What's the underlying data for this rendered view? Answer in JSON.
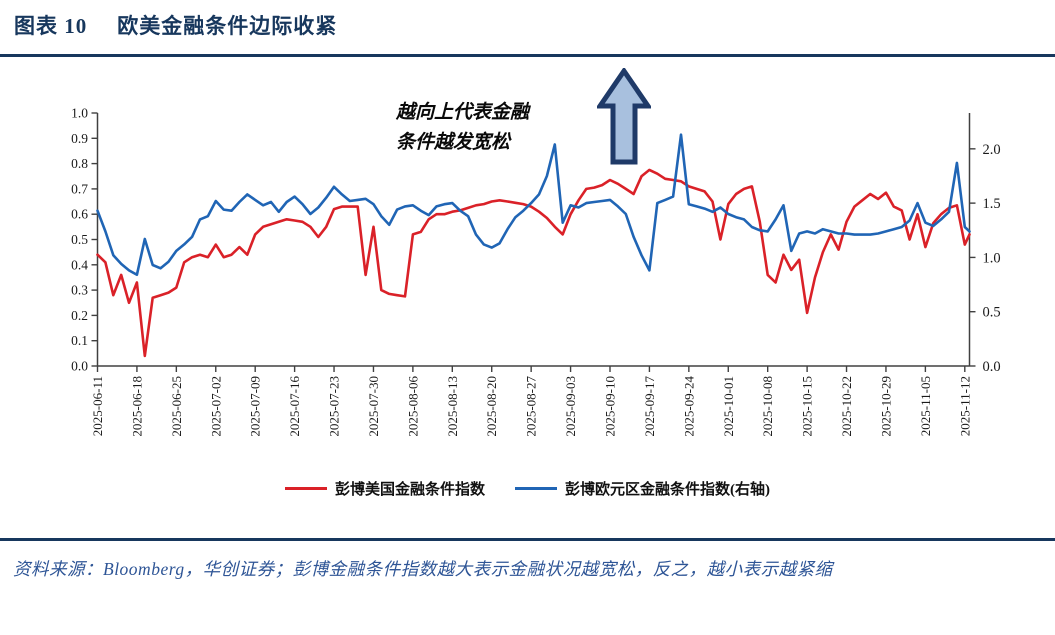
{
  "figure": {
    "label": "图表 10",
    "title": "欧美金融条件边际收紧"
  },
  "annotation": {
    "line1": "越向上代表金融",
    "line2": "条件越发宽松"
  },
  "legend": [
    {
      "label": "彭博美国金融条件指数",
      "color": "#da2128"
    },
    {
      "label": "彭博欧元区金融条件指数(右轴)",
      "color": "#2065b5"
    }
  ],
  "source_note": "资料来源：Bloomberg，华创证券；彭博金融条件指数越大表示金融状况越宽松，反之，越小表示越紧缩",
  "colors": {
    "navy": "#17375d",
    "red_series": "#da2128",
    "blue_series": "#2065b5",
    "arrow_fill": "#a8c0de",
    "arrow_stroke": "#1f3a68",
    "axis": "#404040",
    "source_text": "#2e5596"
  },
  "chart_data": {
    "type": "line",
    "title": "",
    "xlabel": "",
    "ylabel_left": "",
    "ylabel_right": "",
    "grid": false,
    "legend_position": "bottom",
    "left_axis": {
      "range": [
        0.0,
        1.0
      ],
      "ticks": [
        "1.0",
        "0.9",
        "0.8",
        "0.7",
        "0.6",
        "0.5",
        "0.4",
        "0.3",
        "0.2",
        "0.1",
        "0.0"
      ]
    },
    "right_axis": {
      "range": [
        0.0,
        2.33
      ],
      "ticks": [
        "2.0",
        "1.5",
        "1.0",
        "0.5",
        "0.0"
      ]
    },
    "x_tick_labels": [
      "2025-06-11",
      "2025-06-18",
      "2025-06-25",
      "2025-07-02",
      "2025-07-09",
      "2025-07-16",
      "2025-07-23",
      "2025-07-30",
      "2025-08-06",
      "2025-08-13",
      "2025-08-20",
      "2025-08-27",
      "2025-09-03",
      "2025-09-10",
      "2025-09-17",
      "2025-09-24",
      "2025-10-01",
      "2025-10-08",
      "2025-10-15",
      "2025-10-22",
      "2025-10-29",
      "2025-11-05",
      "2025-11-12"
    ],
    "series": [
      {
        "name": "彭博美国金融条件指数",
        "axis": "left",
        "color": "#da2128",
        "points": [
          [
            "2025-06-11",
            0.44
          ],
          [
            "2025-06-12",
            0.41
          ],
          [
            "2025-06-13",
            0.28
          ],
          [
            "2025-06-16",
            0.36
          ],
          [
            "2025-06-17",
            0.25
          ],
          [
            "2025-06-18",
            0.33
          ],
          [
            "2025-06-19",
            0.04
          ],
          [
            "2025-06-20",
            0.27
          ],
          [
            "2025-06-23",
            0.28
          ],
          [
            "2025-06-24",
            0.29
          ],
          [
            "2025-06-25",
            0.31
          ],
          [
            "2025-06-26",
            0.41
          ],
          [
            "2025-06-27",
            0.43
          ],
          [
            "2025-06-30",
            0.44
          ],
          [
            "2025-07-01",
            0.43
          ],
          [
            "2025-07-02",
            0.48
          ],
          [
            "2025-07-03",
            0.43
          ],
          [
            "2025-07-04",
            0.44
          ],
          [
            "2025-07-07",
            0.47
          ],
          [
            "2025-07-08",
            0.44
          ],
          [
            "2025-07-09",
            0.52
          ],
          [
            "2025-07-10",
            0.55
          ],
          [
            "2025-07-11",
            0.56
          ],
          [
            "2025-07-14",
            0.57
          ],
          [
            "2025-07-15",
            0.58
          ],
          [
            "2025-07-16",
            0.575
          ],
          [
            "2025-07-17",
            0.57
          ],
          [
            "2025-07-18",
            0.55
          ],
          [
            "2025-07-21",
            0.51
          ],
          [
            "2025-07-22",
            0.55
          ],
          [
            "2025-07-23",
            0.62
          ],
          [
            "2025-07-24",
            0.63
          ],
          [
            "2025-07-25",
            0.63
          ],
          [
            "2025-07-28",
            0.63
          ],
          [
            "2025-07-29",
            0.36
          ],
          [
            "2025-07-30",
            0.55
          ],
          [
            "2025-07-31",
            0.3
          ],
          [
            "2025-08-01",
            0.285
          ],
          [
            "2025-08-04",
            0.28
          ],
          [
            "2025-08-05",
            0.275
          ],
          [
            "2025-08-06",
            0.52
          ],
          [
            "2025-08-07",
            0.53
          ],
          [
            "2025-08-08",
            0.58
          ],
          [
            "2025-08-11",
            0.6
          ],
          [
            "2025-08-12",
            0.6
          ],
          [
            "2025-08-13",
            0.61
          ],
          [
            "2025-08-14",
            0.615
          ],
          [
            "2025-08-15",
            0.625
          ],
          [
            "2025-08-18",
            0.635
          ],
          [
            "2025-08-19",
            0.64
          ],
          [
            "2025-08-20",
            0.65
          ],
          [
            "2025-08-21",
            0.655
          ],
          [
            "2025-08-22",
            0.65
          ],
          [
            "2025-08-25",
            0.645
          ],
          [
            "2025-08-26",
            0.64
          ],
          [
            "2025-08-27",
            0.63
          ],
          [
            "2025-08-28",
            0.61
          ],
          [
            "2025-08-29",
            0.585
          ],
          [
            "2025-09-01",
            0.55
          ],
          [
            "2025-09-02",
            0.52
          ],
          [
            "2025-09-03",
            0.6
          ],
          [
            "2025-09-04",
            0.655
          ],
          [
            "2025-09-05",
            0.7
          ],
          [
            "2025-09-08",
            0.705
          ],
          [
            "2025-09-09",
            0.715
          ],
          [
            "2025-09-10",
            0.735
          ],
          [
            "2025-09-11",
            0.72
          ],
          [
            "2025-09-12",
            0.7
          ],
          [
            "2025-09-15",
            0.68
          ],
          [
            "2025-09-16",
            0.75
          ],
          [
            "2025-09-17",
            0.775
          ],
          [
            "2025-09-18",
            0.76
          ],
          [
            "2025-09-19",
            0.74
          ],
          [
            "2025-09-22",
            0.735
          ],
          [
            "2025-09-23",
            0.73
          ],
          [
            "2025-09-24",
            0.71
          ],
          [
            "2025-09-25",
            0.7
          ],
          [
            "2025-09-26",
            0.69
          ],
          [
            "2025-09-29",
            0.65
          ],
          [
            "2025-09-30",
            0.5
          ],
          [
            "2025-10-01",
            0.64
          ],
          [
            "2025-10-02",
            0.68
          ],
          [
            "2025-10-03",
            0.7
          ],
          [
            "2025-10-06",
            0.71
          ],
          [
            "2025-10-07",
            0.57
          ],
          [
            "2025-10-08",
            0.36
          ],
          [
            "2025-10-09",
            0.33
          ],
          [
            "2025-10-10",
            0.44
          ],
          [
            "2025-10-13",
            0.38
          ],
          [
            "2025-10-14",
            0.42
          ],
          [
            "2025-10-15",
            0.21
          ],
          [
            "2025-10-16",
            0.35
          ],
          [
            "2025-10-17",
            0.45
          ],
          [
            "2025-10-20",
            0.52
          ],
          [
            "2025-10-21",
            0.46
          ],
          [
            "2025-10-22",
            0.57
          ],
          [
            "2025-10-23",
            0.63
          ],
          [
            "2025-10-24",
            0.655
          ],
          [
            "2025-10-27",
            0.68
          ],
          [
            "2025-10-28",
            0.66
          ],
          [
            "2025-10-29",
            0.685
          ],
          [
            "2025-10-30",
            0.63
          ],
          [
            "2025-10-31",
            0.615
          ],
          [
            "2025-11-03",
            0.5
          ],
          [
            "2025-11-04",
            0.6
          ],
          [
            "2025-11-05",
            0.47
          ],
          [
            "2025-11-06",
            0.565
          ],
          [
            "2025-11-07",
            0.6
          ],
          [
            "2025-11-10",
            0.625
          ],
          [
            "2025-11-11",
            0.635
          ],
          [
            "2025-11-12",
            0.48
          ],
          [
            "2025-11-13",
            0.52
          ]
        ]
      },
      {
        "name": "彭博欧元区金融条件指数(右轴)",
        "axis": "right",
        "color": "#2065b5",
        "points": [
          [
            "2025-06-11",
            1.43
          ],
          [
            "2025-06-12",
            1.24
          ],
          [
            "2025-06-13",
            1.02
          ],
          [
            "2025-06-16",
            0.94
          ],
          [
            "2025-06-17",
            0.88
          ],
          [
            "2025-06-18",
            0.84
          ],
          [
            "2025-06-19",
            1.17
          ],
          [
            "2025-06-20",
            0.93
          ],
          [
            "2025-06-23",
            0.9
          ],
          [
            "2025-06-24",
            0.96
          ],
          [
            "2025-06-25",
            1.06
          ],
          [
            "2025-06-26",
            1.12
          ],
          [
            "2025-06-27",
            1.19
          ],
          [
            "2025-06-30",
            1.35
          ],
          [
            "2025-07-01",
            1.38
          ],
          [
            "2025-07-02",
            1.52
          ],
          [
            "2025-07-03",
            1.44
          ],
          [
            "2025-07-04",
            1.43
          ],
          [
            "2025-07-07",
            1.51
          ],
          [
            "2025-07-08",
            1.58
          ],
          [
            "2025-07-09",
            1.53
          ],
          [
            "2025-07-10",
            1.48
          ],
          [
            "2025-07-11",
            1.51
          ],
          [
            "2025-07-14",
            1.42
          ],
          [
            "2025-07-15",
            1.51
          ],
          [
            "2025-07-16",
            1.56
          ],
          [
            "2025-07-17",
            1.49
          ],
          [
            "2025-07-18",
            1.4
          ],
          [
            "2025-07-21",
            1.46
          ],
          [
            "2025-07-22",
            1.55
          ],
          [
            "2025-07-23",
            1.65
          ],
          [
            "2025-07-24",
            1.58
          ],
          [
            "2025-07-25",
            1.52
          ],
          [
            "2025-07-28",
            1.53
          ],
          [
            "2025-07-29",
            1.54
          ],
          [
            "2025-07-30",
            1.49
          ],
          [
            "2025-07-31",
            1.38
          ],
          [
            "2025-08-01",
            1.3
          ],
          [
            "2025-08-04",
            1.44
          ],
          [
            "2025-08-05",
            1.47
          ],
          [
            "2025-08-06",
            1.48
          ],
          [
            "2025-08-07",
            1.43
          ],
          [
            "2025-08-08",
            1.39
          ],
          [
            "2025-08-11",
            1.47
          ],
          [
            "2025-08-12",
            1.49
          ],
          [
            "2025-08-13",
            1.5
          ],
          [
            "2025-08-14",
            1.43
          ],
          [
            "2025-08-15",
            1.38
          ],
          [
            "2025-08-18",
            1.21
          ],
          [
            "2025-08-19",
            1.12
          ],
          [
            "2025-08-20",
            1.09
          ],
          [
            "2025-08-21",
            1.13
          ],
          [
            "2025-08-22",
            1.26
          ],
          [
            "2025-08-25",
            1.37
          ],
          [
            "2025-08-26",
            1.43
          ],
          [
            "2025-08-27",
            1.5
          ],
          [
            "2025-08-28",
            1.58
          ],
          [
            "2025-08-29",
            1.75
          ],
          [
            "2025-09-01",
            2.04
          ],
          [
            "2025-09-02",
            1.32
          ],
          [
            "2025-09-03",
            1.48
          ],
          [
            "2025-09-04",
            1.46
          ],
          [
            "2025-09-05",
            1.5
          ],
          [
            "2025-09-08",
            1.51
          ],
          [
            "2025-09-09",
            1.52
          ],
          [
            "2025-09-10",
            1.53
          ],
          [
            "2025-09-11",
            1.47
          ],
          [
            "2025-09-12",
            1.4
          ],
          [
            "2025-09-15",
            1.19
          ],
          [
            "2025-09-16",
            1.02
          ],
          [
            "2025-09-17",
            0.88
          ],
          [
            "2025-09-18",
            1.5
          ],
          [
            "2025-09-19",
            1.53
          ],
          [
            "2025-09-22",
            1.56
          ],
          [
            "2025-09-23",
            2.13
          ],
          [
            "2025-09-24",
            1.49
          ],
          [
            "2025-09-25",
            1.47
          ],
          [
            "2025-09-26",
            1.45
          ],
          [
            "2025-09-29",
            1.42
          ],
          [
            "2025-09-30",
            1.46
          ],
          [
            "2025-10-01",
            1.4
          ],
          [
            "2025-10-02",
            1.37
          ],
          [
            "2025-10-03",
            1.35
          ],
          [
            "2025-10-06",
            1.28
          ],
          [
            "2025-10-07",
            1.25
          ],
          [
            "2025-10-08",
            1.24
          ],
          [
            "2025-10-09",
            1.35
          ],
          [
            "2025-10-10",
            1.48
          ],
          [
            "2025-10-13",
            1.06
          ],
          [
            "2025-10-14",
            1.22
          ],
          [
            "2025-10-15",
            1.24
          ],
          [
            "2025-10-16",
            1.22
          ],
          [
            "2025-10-17",
            1.26
          ],
          [
            "2025-10-20",
            1.24
          ],
          [
            "2025-10-21",
            1.22
          ],
          [
            "2025-10-22",
            1.22
          ],
          [
            "2025-10-23",
            1.21
          ],
          [
            "2025-10-24",
            1.21
          ],
          [
            "2025-10-27",
            1.21
          ],
          [
            "2025-10-28",
            1.22
          ],
          [
            "2025-10-29",
            1.24
          ],
          [
            "2025-10-30",
            1.26
          ],
          [
            "2025-10-31",
            1.28
          ],
          [
            "2025-11-03",
            1.34
          ],
          [
            "2025-11-04",
            1.5
          ],
          [
            "2025-11-05",
            1.32
          ],
          [
            "2025-11-06",
            1.29
          ],
          [
            "2025-11-07",
            1.35
          ],
          [
            "2025-11-10",
            1.42
          ],
          [
            "2025-11-11",
            1.87
          ],
          [
            "2025-11-12",
            1.28
          ],
          [
            "2025-11-13",
            1.24
          ]
        ]
      }
    ]
  }
}
